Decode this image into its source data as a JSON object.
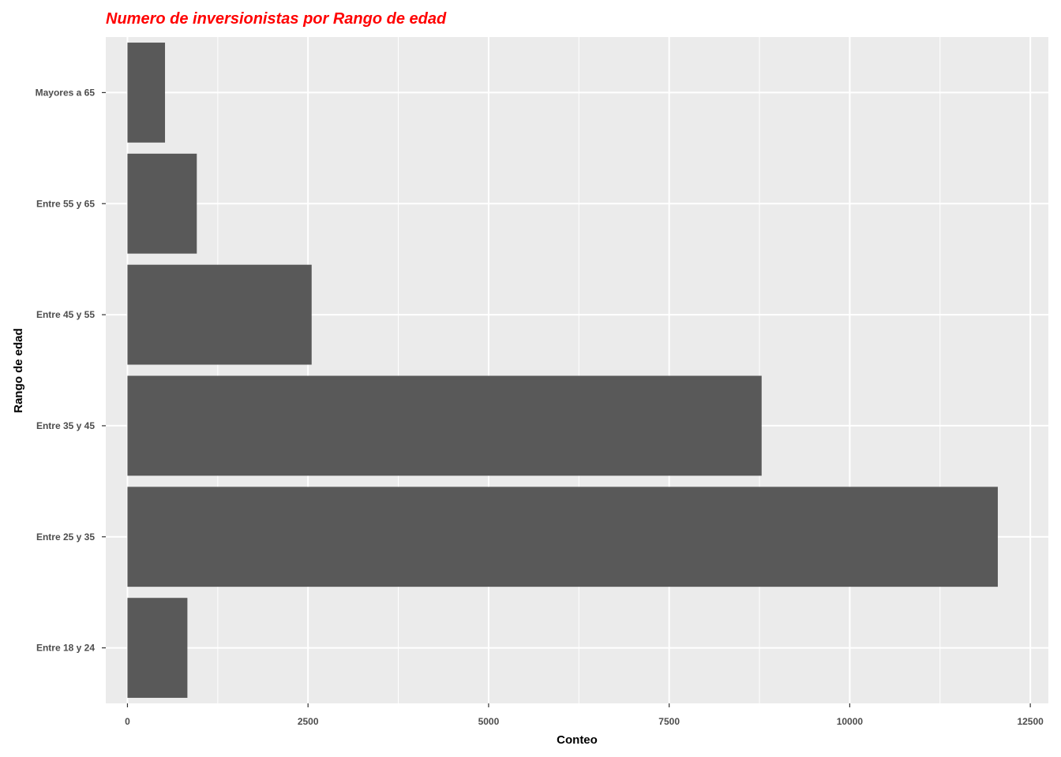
{
  "chart_data": {
    "type": "bar",
    "orientation": "horizontal",
    "title": "Numero de inversionistas por Rango de edad",
    "xlabel": "Conteo",
    "ylabel": "Rango de edad",
    "categories": [
      "Entre 18 y 24",
      "Entre 25 y 35",
      "Entre 35 y 45",
      "Entre 45 y 55",
      "Entre 55 y 65",
      "Mayores a 65"
    ],
    "values": [
      830,
      12050,
      8780,
      2550,
      960,
      520
    ],
    "xlim": [
      -300,
      12750
    ],
    "xticks": [
      0,
      2500,
      5000,
      7500,
      10000,
      12500
    ],
    "xtick_labels": [
      "0",
      "2500",
      "5000",
      "7500",
      "10000",
      "12500"
    ],
    "grid": true,
    "colors": {
      "title": "#ff0000",
      "bar": "#595959",
      "panel": "#ebebeb",
      "grid": "#ffffff"
    }
  }
}
